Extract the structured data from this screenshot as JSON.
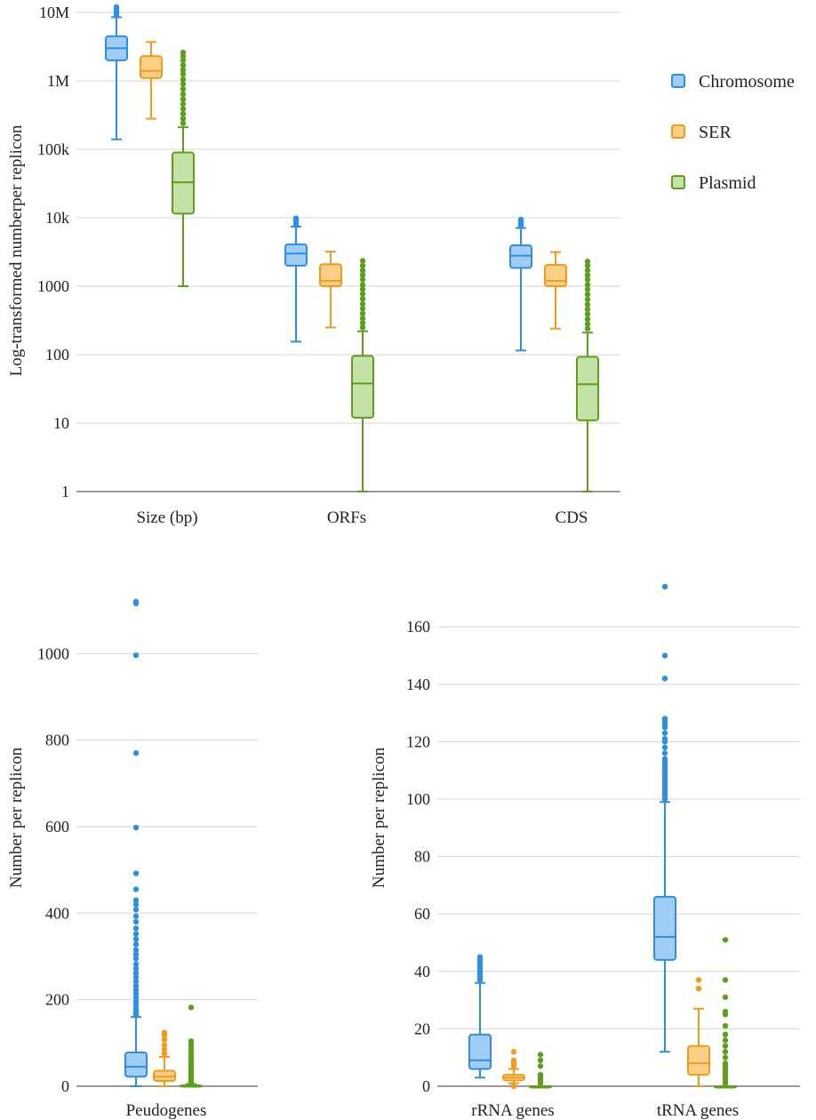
{
  "colors": {
    "Chromosome": {
      "stroke": "#2e8fe0",
      "fill": "#9fcdf3"
    },
    "SER": {
      "stroke": "#f29a1c",
      "fill": "#fbcf86"
    },
    "Plasmid": {
      "stroke": "#5e9e1c",
      "fill": "#c4e2a6"
    }
  },
  "legend": [
    "Chromosome",
    "SER",
    "Plasmid"
  ],
  "chart_data": [
    {
      "type": "box",
      "scale": "log",
      "ylabel": "Log-transformed numberper replicon",
      "ylim": [
        1,
        10000000
      ],
      "yticks": [
        1,
        10,
        100,
        1000,
        10000,
        100000,
        1000000,
        10000000
      ],
      "ytick_labels": [
        "1",
        "10",
        "100",
        "1000",
        "10k",
        "100k",
        "1M",
        "10M"
      ],
      "categories": [
        "Size (bp)",
        "ORFs",
        "CDS"
      ],
      "series": [
        {
          "name": "Chromosome",
          "boxes": [
            {
              "min": 140000,
              "q1": 2000000,
              "median": 3000000,
              "q3": 4500000,
              "max": 8500000,
              "outliers": [
                9000000,
                9600000,
                10200000,
                10800000,
                11500000,
                12000000
              ]
            },
            {
              "min": 155,
              "q1": 2000,
              "median": 3000,
              "q3": 4100,
              "max": 7400,
              "outliers": [
                7800,
                8300,
                8800,
                9300,
                9800
              ]
            },
            {
              "min": 115,
              "q1": 1850,
              "median": 2800,
              "q3": 3950,
              "max": 7100,
              "outliers": [
                7500,
                8000,
                8500,
                9000,
                9400
              ]
            }
          ]
        },
        {
          "name": "SER",
          "boxes": [
            {
              "min": 280000,
              "q1": 1100000,
              "median": 1400000,
              "q3": 2300000,
              "max": 3700000,
              "outliers": []
            },
            {
              "min": 250,
              "q1": 1000,
              "median": 1200,
              "q3": 2100,
              "max": 3200,
              "outliers": []
            },
            {
              "min": 240,
              "q1": 1000,
              "median": 1200,
              "q3": 2050,
              "max": 3150,
              "outliers": []
            }
          ]
        },
        {
          "name": "Plasmid",
          "boxes": [
            {
              "min": 1000,
              "q1": 11500,
              "median": 33000,
              "q3": 90000,
              "max": 210000,
              "outliers": [
                240000,
                280000,
                330000,
                390000,
                460000,
                540000,
                640000,
                760000,
                900000,
                1050000,
                1250000,
                1450000,
                1700000,
                2000000,
                2300000,
                2600000
              ]
            },
            {
              "min": 1,
              "q1": 12,
              "median": 38,
              "q3": 96,
              "max": 220,
              "outliers": [
                250,
                290,
                340,
                400,
                470,
                550,
                650,
                770,
                900,
                1050,
                1250,
                1450,
                1700,
                2000,
                2350
              ]
            },
            {
              "min": 1,
              "q1": 11,
              "median": 37,
              "q3": 93,
              "max": 210,
              "outliers": [
                240,
                280,
                330,
                390,
                460,
                540,
                640,
                760,
                900,
                1050,
                1250,
                1450,
                1700,
                2000,
                2300
              ]
            }
          ]
        }
      ]
    },
    {
      "type": "box",
      "scale": "linear",
      "ylabel": "Number per replicon",
      "ylim": [
        0,
        1130
      ],
      "yticks": [
        0,
        200,
        400,
        600,
        800,
        1000
      ],
      "ytick_labels": [
        "0",
        "200",
        "400",
        "600",
        "800",
        "1000"
      ],
      "categories": [
        "Peudogenes"
      ],
      "series": [
        {
          "name": "Chromosome",
          "boxes": [
            {
              "min": 0,
              "q1": 22,
              "median": 45,
              "q3": 78,
              "max": 160,
              "outliers": [
                165,
                172,
                180,
                188,
                196,
                205,
                214,
                222,
                232,
                242,
                252,
                262,
                272,
                282,
                295,
                305,
                315,
                328,
                340,
                352,
                365,
                380,
                393,
                408,
                420,
                430,
                455,
                492,
                598,
                770,
                996,
                1116,
                1120
              ]
            }
          ]
        },
        {
          "name": "SER",
          "boxes": [
            {
              "min": 0,
              "q1": 12,
              "median": 22,
              "q3": 36,
              "max": 68,
              "outliers": [
                75,
                85,
                95,
                108,
                118,
                124
              ]
            }
          ]
        },
        {
          "name": "Plasmid",
          "boxes": [
            {
              "min": 0,
              "q1": 0,
              "median": 0,
              "q3": 2,
              "max": 5,
              "outliers": [
                8,
                12,
                16,
                20,
                25,
                30,
                35,
                40,
                46,
                52,
                58,
                65,
                72,
                80,
                88,
                96,
                104,
                182
              ]
            }
          ]
        }
      ]
    },
    {
      "type": "box",
      "scale": "linear",
      "ylabel": "Number per replicon",
      "ylim": [
        0,
        174
      ],
      "yticks": [
        0,
        20,
        40,
        60,
        80,
        100,
        120,
        140,
        160
      ],
      "ytick_labels": [
        "0",
        "20",
        "40",
        "60",
        "80",
        "100",
        "120",
        "140",
        "160"
      ],
      "categories": [
        "rRNA genes",
        "tRNA genes"
      ],
      "series": [
        {
          "name": "Chromosome",
          "boxes": [
            {
              "min": 3,
              "q1": 6,
              "median": 9,
              "q3": 18,
              "max": 36,
              "outliers": [
                37,
                38,
                39,
                40,
                41,
                42,
                43,
                44,
                45
              ]
            },
            {
              "min": 12,
              "q1": 44,
              "median": 52,
              "q3": 66,
              "max": 99,
              "outliers": [
                100,
                101,
                102,
                103,
                104,
                105,
                106,
                107,
                108,
                109,
                110,
                111,
                112,
                113,
                114,
                116,
                118,
                120,
                121,
                123,
                125,
                126,
                127,
                128,
                142,
                150,
                174
              ]
            }
          ]
        },
        {
          "name": "SER",
          "boxes": [
            {
              "min": 1,
              "q1": 2,
              "median": 3,
              "q3": 4,
              "max": 6,
              "outliers": [
                0,
                7,
                8,
                9,
                12
              ]
            },
            {
              "min": 0,
              "q1": 4,
              "median": 8,
              "q3": 14,
              "max": 27,
              "outliers": [
                34,
                37
              ]
            }
          ]
        },
        {
          "name": "Plasmid",
          "boxes": [
            {
              "min": 0,
              "q1": 0,
              "median": 0,
              "q3": 0,
              "max": 0,
              "outliers": [
                1,
                2,
                3,
                4,
                7,
                9,
                11
              ]
            },
            {
              "min": 0,
              "q1": 0,
              "median": 0,
              "q3": 0,
              "max": 0,
              "outliers": [
                1,
                2,
                3,
                4,
                5,
                6,
                7,
                8,
                10,
                12,
                14,
                16,
                18,
                21,
                25,
                26,
                31,
                37,
                51
              ]
            }
          ]
        }
      ]
    }
  ]
}
